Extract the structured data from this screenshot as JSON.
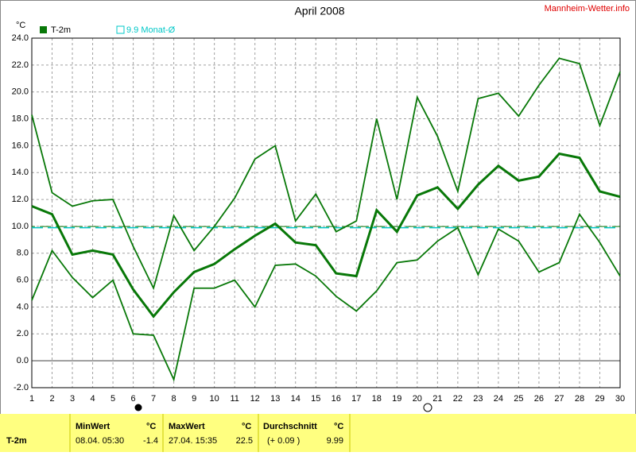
{
  "chart_data": {
    "type": "line",
    "title": "April 2008",
    "credit": "Mannheim-Wetter.info",
    "ylabel": "°C",
    "x": [
      1,
      2,
      3,
      4,
      5,
      6,
      7,
      8,
      9,
      10,
      11,
      12,
      13,
      14,
      15,
      16,
      17,
      18,
      19,
      20,
      21,
      22,
      23,
      24,
      25,
      26,
      27,
      28,
      29,
      30
    ],
    "xlim": [
      1,
      30
    ],
    "xticks": [
      1,
      2,
      3,
      4,
      5,
      6,
      7,
      8,
      9,
      10,
      11,
      12,
      13,
      14,
      15,
      16,
      17,
      18,
      19,
      20,
      21,
      22,
      23,
      24,
      25,
      26,
      27,
      28,
      29,
      30
    ],
    "ylim": [
      -2,
      24
    ],
    "yticks": [
      {
        "value": -2,
        "label": "-2.0"
      },
      {
        "value": 0,
        "label": "0.0"
      },
      {
        "value": 2,
        "label": "2.0"
      },
      {
        "value": 4,
        "label": "4.0"
      },
      {
        "value": 6,
        "label": "6.0"
      },
      {
        "value": 8,
        "label": "8.0"
      },
      {
        "value": 10,
        "label": "10.0"
      },
      {
        "value": 12,
        "label": "12.0"
      },
      {
        "value": 14,
        "label": "14.0"
      },
      {
        "value": 16,
        "label": "16.0"
      },
      {
        "value": 18,
        "label": "18.0"
      },
      {
        "value": 20,
        "label": "20.0"
      },
      {
        "value": 22,
        "label": "22.0"
      },
      {
        "value": 24,
        "label": "24.0"
      }
    ],
    "grid": true,
    "series": [
      {
        "color": "#087808",
        "values": [
          18.3,
          12.5,
          11.5,
          11.9,
          12.0,
          8.5,
          5.4,
          10.8,
          8.2,
          10.0,
          12.1,
          15.0,
          16.0,
          10.4,
          12.4,
          9.6,
          10.4,
          18.0,
          12.0,
          19.6,
          16.7,
          12.6,
          19.5,
          19.9,
          18.2,
          20.5,
          22.5,
          22.1,
          17.5,
          21.5
        ]
      },
      {
        "name": "T-2m",
        "color": "#087808",
        "values": [
          11.5,
          10.9,
          7.9,
          8.2,
          7.9,
          5.3,
          3.3,
          5.1,
          6.6,
          7.2,
          8.3,
          9.3,
          10.2,
          8.8,
          8.6,
          6.5,
          6.3,
          11.2,
          9.6,
          12.3,
          12.9,
          11.3,
          13.1,
          14.5,
          13.4,
          13.7,
          15.4,
          15.1,
          12.6,
          12.2
        ]
      },
      {
        "color": "#087808",
        "values": [
          4.5,
          8.2,
          6.2,
          4.7,
          6.0,
          2.0,
          1.9,
          -1.4,
          5.4,
          5.4,
          6.0,
          4.0,
          7.1,
          7.2,
          6.3,
          4.8,
          3.7,
          5.2,
          7.3,
          7.5,
          8.9,
          9.9,
          6.4,
          9.8,
          8.9,
          6.6,
          7.3,
          10.9,
          8.8,
          6.3
        ]
      }
    ],
    "reference_line": {
      "value": 9.9,
      "label": "9.9 Monat-Ø",
      "color": "#00c8c8"
    }
  },
  "table": {
    "row_label": "T-2m",
    "headers": [
      "MinWert",
      "°C",
      "MaxWert",
      "°C",
      "Durchschnitt",
      "°C"
    ],
    "values": [
      "08.04.  05:30",
      "-1.4",
      "27.04.  15:35",
      "22.5",
      "(+ 0.09 )",
      "9.99"
    ]
  }
}
